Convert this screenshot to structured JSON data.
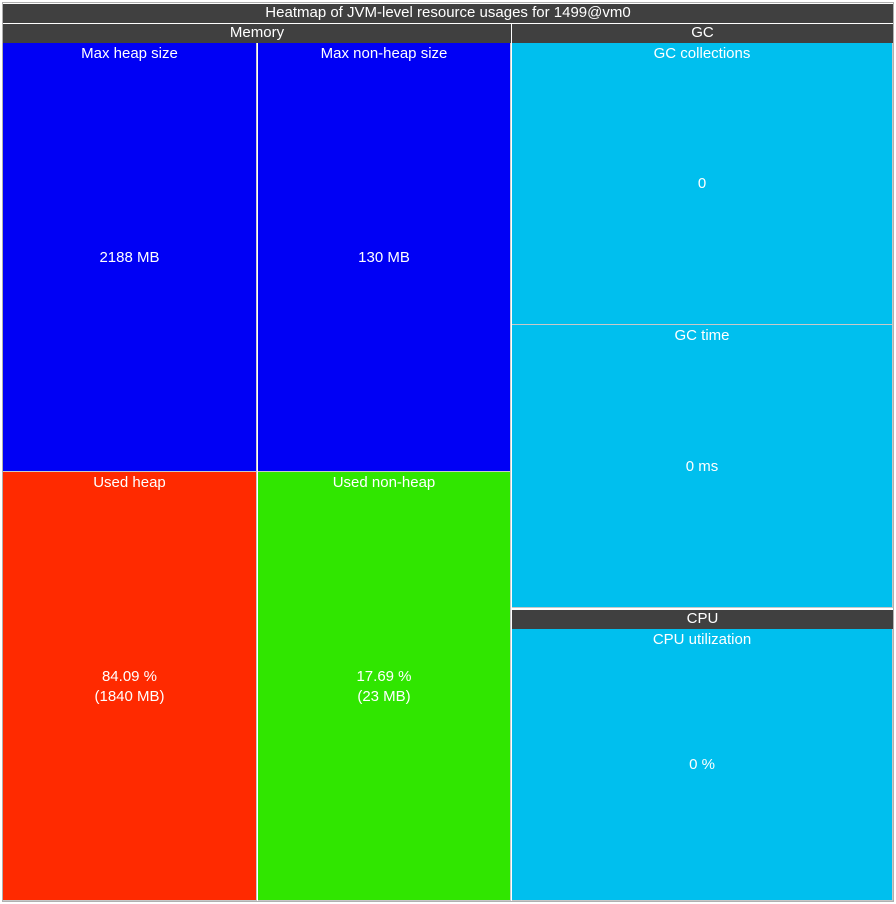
{
  "title": "Heatmap of JVM-level resource usages for 1499@vm0",
  "colors": {
    "header": "#404040",
    "max_size": "#0000f5",
    "used_heap": "#ff2a00",
    "used_non_heap": "#30e600",
    "neutral": "#00bfee",
    "divider": "#c8c8c8"
  },
  "chart_data": {
    "type": "heatmap",
    "title": "Heatmap of JVM-level resource usages for 1499@vm0",
    "groups": [
      {
        "name": "Memory",
        "cells": [
          {
            "label": "Max heap size",
            "value": 2188,
            "unit": "MB",
            "text": [
              "2188 MB"
            ],
            "color": "#0000f5"
          },
          {
            "label": "Max non-heap size",
            "value": 130,
            "unit": "MB",
            "text": [
              "130 MB"
            ],
            "color": "#0000f5"
          },
          {
            "label": "Used heap",
            "value": 84.09,
            "unit": "%",
            "used_mb": 1840,
            "text": [
              "84.09 %",
              "(1840 MB)"
            ],
            "color": "#ff2a00"
          },
          {
            "label": "Used non-heap",
            "value": 17.69,
            "unit": "%",
            "used_mb": 23,
            "text": [
              "17.69 %",
              "(23 MB)"
            ],
            "color": "#30e600"
          }
        ]
      },
      {
        "name": "GC",
        "cells": [
          {
            "label": "GC collections",
            "value": 0,
            "unit": "",
            "text": [
              "0"
            ],
            "color": "#00bfee"
          },
          {
            "label": "GC time",
            "value": 0,
            "unit": "ms",
            "text": [
              "0 ms"
            ],
            "color": "#00bfee"
          }
        ]
      },
      {
        "name": "CPU",
        "cells": [
          {
            "label": "CPU utilization",
            "value": 0,
            "unit": "%",
            "text": [
              "0 %"
            ],
            "color": "#00bfee"
          }
        ]
      }
    ]
  }
}
